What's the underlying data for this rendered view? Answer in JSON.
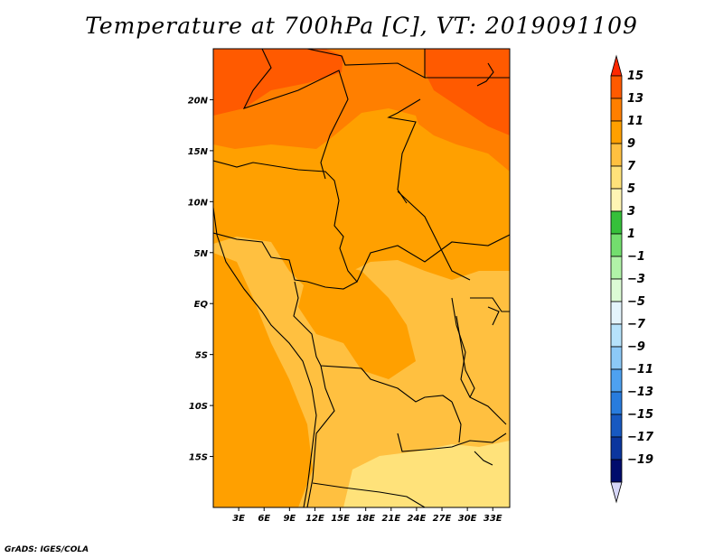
{
  "title": "Temperature at 700hPa [C], VT: 2019091109",
  "credit": "GrADS: IGES/COLA",
  "axes": {
    "lat_labels": [
      "20N",
      "15N",
      "10N",
      "5N",
      "EQ",
      "5S",
      "10S",
      "15S"
    ],
    "lat_values": [
      20,
      15,
      10,
      5,
      0,
      -5,
      -10,
      -15
    ],
    "lon_labels": [
      "3E",
      "6E",
      "9E",
      "12E",
      "15E",
      "18E",
      "21E",
      "24E",
      "27E",
      "30E",
      "33E"
    ],
    "lon_values": [
      3,
      6,
      9,
      12,
      15,
      18,
      21,
      24,
      27,
      30,
      33
    ],
    "lat_range": [
      -20,
      25
    ],
    "lon_range": [
      0,
      35
    ]
  },
  "colorbar": {
    "labels": [
      "15",
      "13",
      "11",
      "9",
      "7",
      "5",
      "3",
      "1",
      "−1",
      "−3",
      "−5",
      "−7",
      "−9",
      "−11",
      "−13",
      "−15",
      "−17",
      "−19"
    ],
    "colors": [
      "#ff2800",
      "#ff5a00",
      "#ff7f00",
      "#ffa000",
      "#ffc040",
      "#ffe27a",
      "#fff5b4",
      "#36c03a",
      "#73de6e",
      "#b1f3a8",
      "#dcfbd5",
      "#e4f4fc",
      "#b6e2fb",
      "#8cc9f7",
      "#4ea1f0",
      "#287cde",
      "#1759c1",
      "#0b369e",
      "#000c6c",
      "#d6d6f8"
    ]
  },
  "legend_colors": {
    "very_warm": "#ff5a00",
    "warm": "#ff7f00",
    "mid": "#ffa000",
    "mild": "#ffc040",
    "cool": "#ffe27a"
  }
}
